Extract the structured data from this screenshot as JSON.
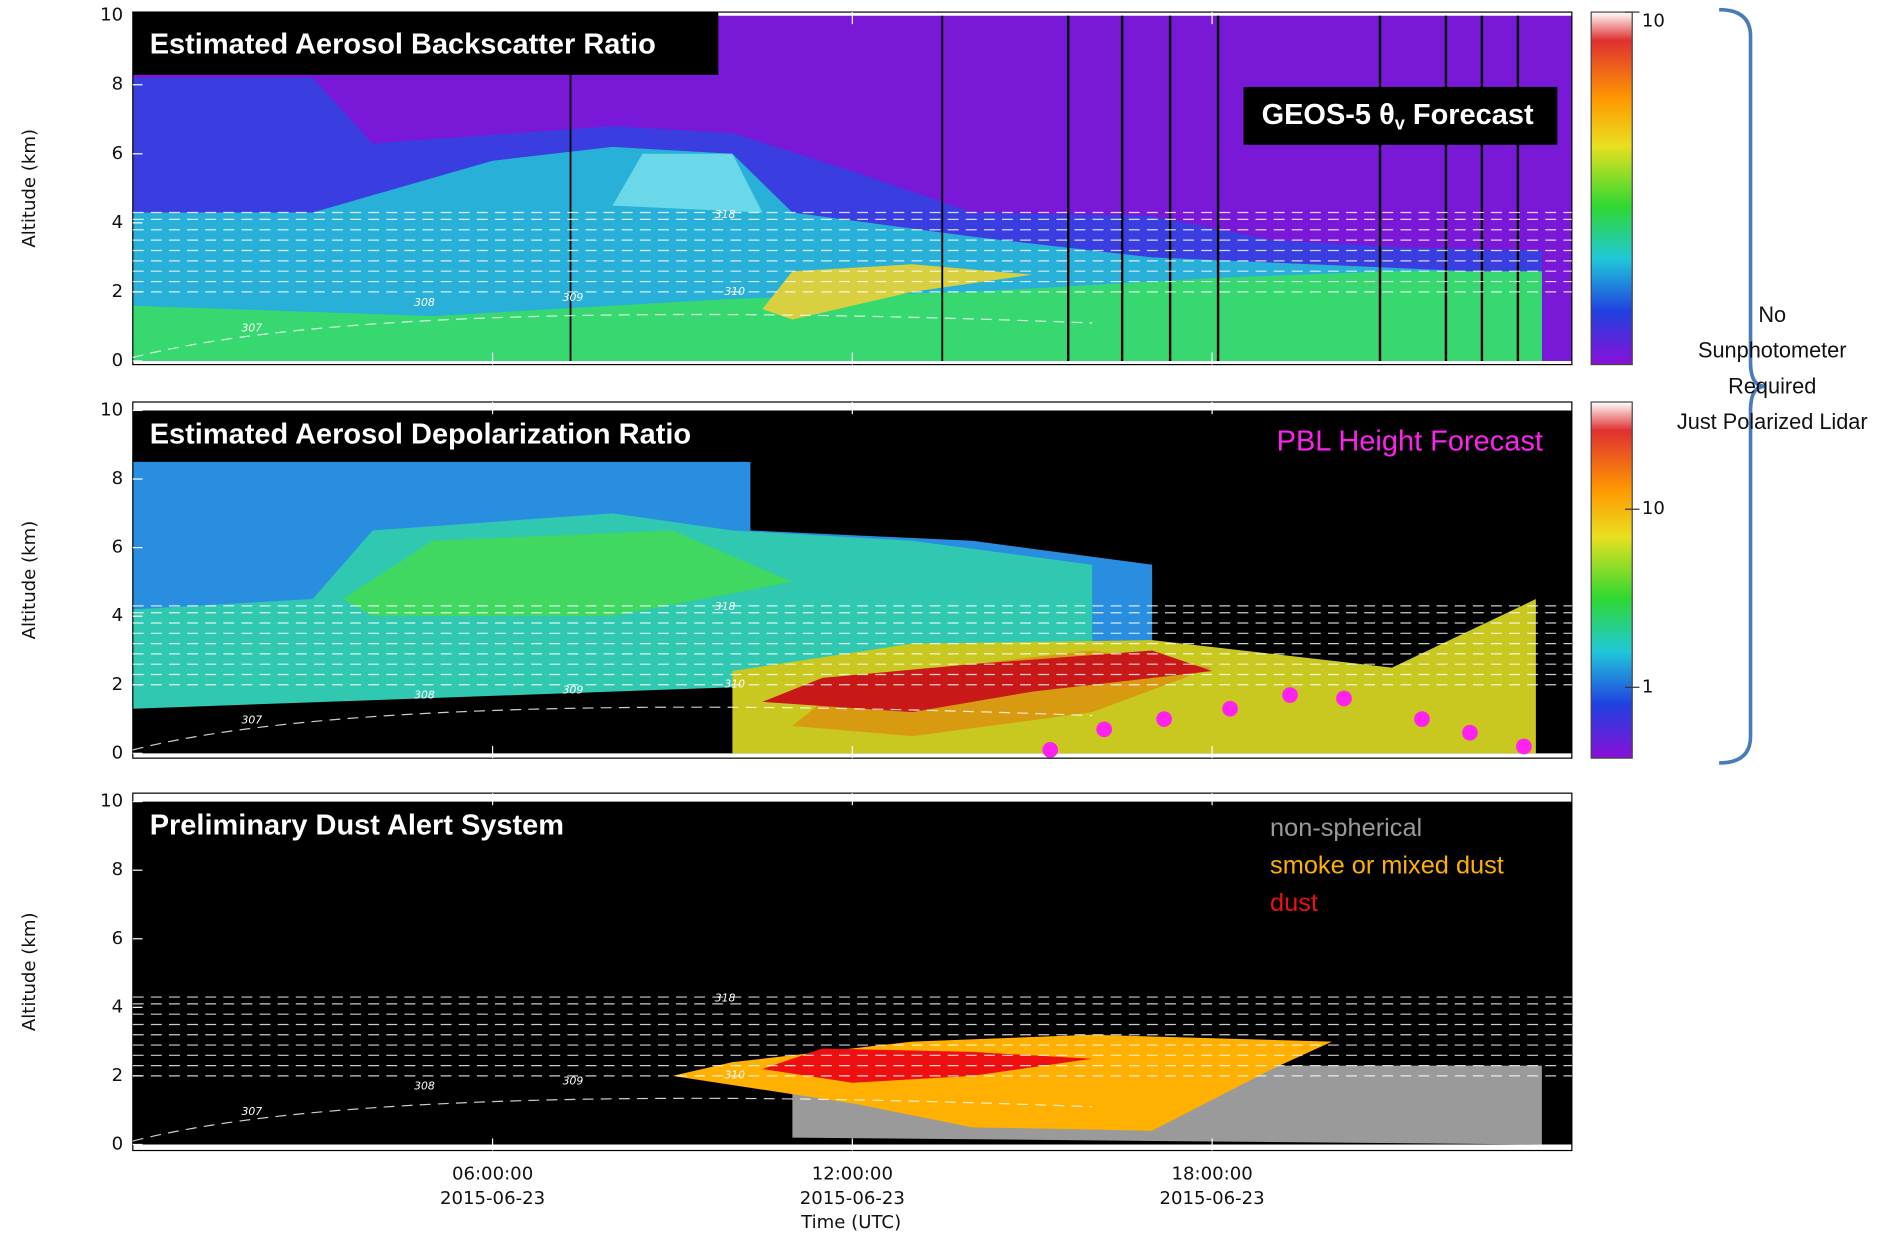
{
  "chart_data": [
    {
      "type": "heatmap",
      "title": "Estimated Aerosol Backscatter Ratio",
      "ylabel": "Altitude (km)",
      "forecast_label": {
        "prefix": "GEOS-5 θ",
        "subscript": "v",
        "suffix": " Forecast"
      },
      "xlim": [
        0,
        24
      ],
      "ylim": [
        0,
        10
      ],
      "yticks": [
        0,
        2,
        4,
        6,
        8,
        10
      ],
      "xticks": [
        {
          "value": 6,
          "label": "06:00:00"
        },
        {
          "value": 12,
          "label": "12:00:00"
        },
        {
          "value": 18,
          "label": "18:00:00"
        }
      ],
      "colorbar": {
        "lim": [
          1,
          10
        ],
        "ticks": [
          10
        ],
        "log": true
      },
      "contour_labels": [
        "307",
        "308",
        "309",
        "310",
        "318"
      ]
    },
    {
      "type": "heatmap",
      "title": "Estimated Aerosol Depolarization Ratio",
      "ylabel": "Altitude (km)",
      "xlim": [
        0,
        24
      ],
      "ylim": [
        0,
        10
      ],
      "yticks": [
        0,
        2,
        4,
        6,
        8,
        10
      ],
      "xticks": [
        {
          "value": 6,
          "label": "06:00:00"
        },
        {
          "value": 12,
          "label": "12:00:00"
        },
        {
          "value": 18,
          "label": "18:00:00"
        }
      ],
      "colorbar": {
        "lim": [
          0.4,
          40
        ],
        "ticks": [
          1,
          10
        ],
        "log": true
      },
      "series": [
        {
          "name": "PBL Height Forecast",
          "color": "#ff22ee",
          "x": [
            15.3,
            16.2,
            17.2,
            18.3,
            19.3,
            20.2,
            21.5,
            22.3,
            23.2
          ],
          "values": [
            0.1,
            0.7,
            1.0,
            1.3,
            1.7,
            1.6,
            1.0,
            0.6,
            0.2
          ]
        }
      ],
      "contour_labels": [
        "307",
        "308",
        "309",
        "310",
        "318"
      ]
    },
    {
      "type": "heatmap",
      "title": "Preliminary Dust Alert System",
      "ylabel": "Altitude (km)",
      "xlabel": "Time (UTC)",
      "xlim": [
        0,
        24
      ],
      "ylim": [
        0,
        10
      ],
      "yticks": [
        0,
        2,
        4,
        6,
        8,
        10
      ],
      "xticks": [
        {
          "value": 6,
          "label": "06:00:00",
          "date": "2015-06-23"
        },
        {
          "value": 12,
          "label": "12:00:00",
          "date": "2015-06-23"
        },
        {
          "value": 18,
          "label": "18:00:00",
          "date": "2015-06-23"
        }
      ],
      "legend": [
        {
          "name": "non-spherical",
          "color": "#9a9a9a"
        },
        {
          "name": "smoke or mixed dust",
          "color": "#ffb000"
        },
        {
          "name": "dust",
          "color": "#ee1010"
        }
      ],
      "contour_labels": [
        "307",
        "308",
        "309",
        "310",
        "318"
      ]
    }
  ],
  "annotation": {
    "lines": [
      "No",
      "Sunphotometer",
      "Required",
      "Just Polarized Lidar"
    ]
  }
}
